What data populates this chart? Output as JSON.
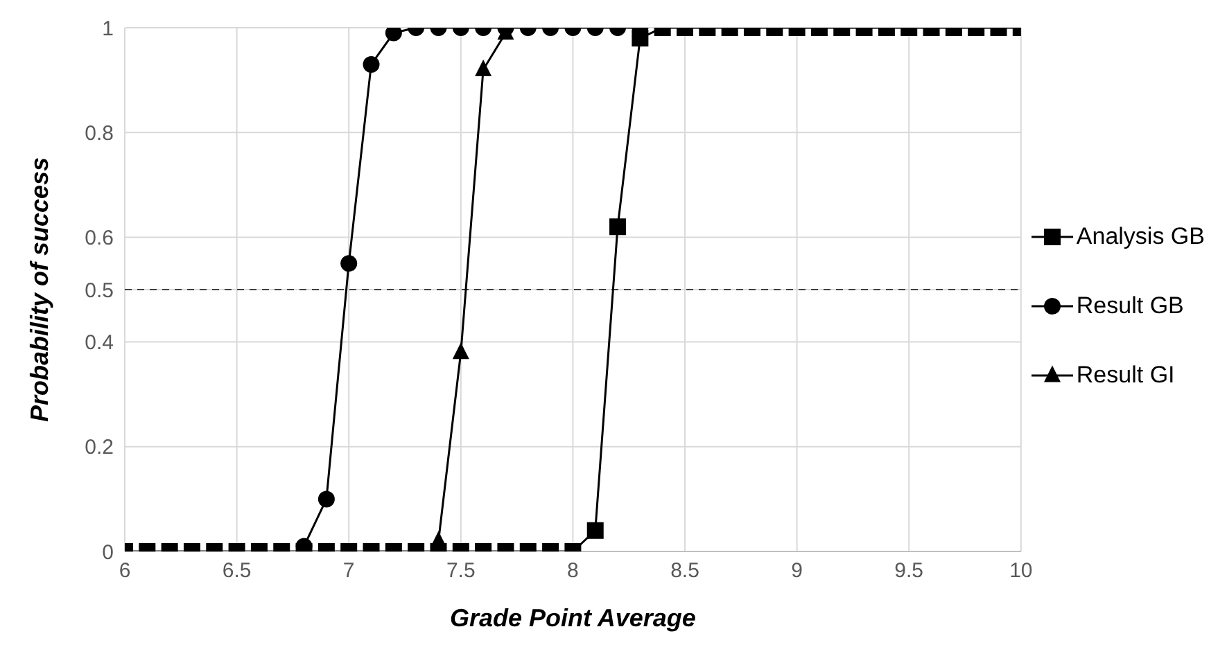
{
  "chart_data": {
    "type": "line",
    "xlabel": "Grade Point Average",
    "ylabel": "Probability of success",
    "xlim": [
      6,
      10
    ],
    "xticks": [
      6,
      6.5,
      7,
      7.5,
      8,
      8.5,
      9,
      9.5,
      10
    ],
    "ylim": [
      0,
      1
    ],
    "yticks": [
      0,
      0.2,
      0.4,
      0.5,
      0.6,
      0.8,
      1
    ],
    "grid": true,
    "legend": "right",
    "line_style": "solid",
    "ref_lines": [
      {
        "axis": "y",
        "value": 0.5,
        "line_style": "dashed",
        "color": "#404040"
      }
    ],
    "series": [
      {
        "name": "Analysis GB",
        "color": "#000000",
        "marker": "square",
        "x": [
          6.0,
          6.1,
          6.2,
          6.3,
          6.4,
          6.5,
          6.6,
          6.7,
          6.8,
          6.9,
          7.0,
          7.1,
          7.2,
          7.3,
          7.4,
          7.5,
          7.6,
          7.7,
          7.8,
          7.9,
          8.0,
          8.1,
          8.2,
          8.3,
          8.4,
          8.5,
          8.6,
          8.7,
          8.8,
          8.9,
          9.0,
          9.1,
          9.2,
          9.3,
          9.4,
          9.5,
          9.6,
          9.7,
          9.8,
          9.9,
          10.0
        ],
        "values": [
          0,
          0,
          0,
          0,
          0,
          0,
          0,
          0,
          0,
          0,
          0,
          0,
          0,
          0,
          0,
          0,
          0,
          0,
          0,
          0,
          0,
          0.04,
          0.62,
          0.98,
          1,
          1,
          1,
          1,
          1,
          1,
          1,
          1,
          1,
          1,
          1,
          1,
          1,
          1,
          1,
          1,
          1
        ]
      },
      {
        "name": "Result GB",
        "color": "#000000",
        "marker": "circle",
        "x": [
          6.8,
          6.9,
          7.0,
          7.1,
          7.2,
          7.3,
          7.4,
          7.5,
          7.6,
          7.7,
          7.8,
          7.9,
          8.0,
          8.1,
          8.2,
          8.3
        ],
        "values": [
          0.01,
          0.1,
          0.55,
          0.93,
          0.99,
          1,
          1,
          1,
          1,
          1,
          1,
          1,
          1,
          1,
          1,
          1
        ]
      },
      {
        "name": "Result GI",
        "color": "#000000",
        "marker": "triangle",
        "x": [
          7.4,
          7.5,
          7.6,
          7.7
        ],
        "values": [
          0.02,
          0.38,
          0.92,
          0.99
        ]
      }
    ]
  }
}
